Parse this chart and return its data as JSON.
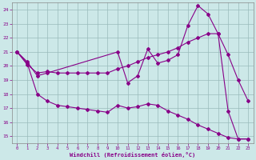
{
  "xlabel": "Windchill (Refroidissement éolien,°C)",
  "bg_color": "#cce8e8",
  "line_color": "#880088",
  "grid_color": "#99bbbb",
  "xlim": [
    -0.5,
    23.5
  ],
  "ylim": [
    14.5,
    24.5
  ],
  "yticks": [
    15,
    16,
    17,
    18,
    19,
    20,
    21,
    22,
    23,
    24
  ],
  "xticks": [
    0,
    1,
    2,
    3,
    4,
    5,
    6,
    7,
    8,
    9,
    10,
    11,
    12,
    13,
    14,
    15,
    16,
    17,
    18,
    19,
    20,
    21,
    22,
    23
  ],
  "line1_x": [
    0,
    1,
    2,
    3,
    10,
    11,
    12,
    13,
    14,
    15,
    16,
    17,
    18,
    19,
    20,
    21,
    22,
    23
  ],
  "line1_y": [
    21.0,
    20.3,
    19.3,
    19.5,
    21.0,
    18.8,
    19.3,
    21.2,
    20.2,
    20.4,
    20.8,
    22.9,
    24.3,
    23.7,
    22.3,
    16.8,
    14.8,
    14.8
  ],
  "line2_x": [
    0,
    1,
    2,
    3,
    4,
    5,
    6,
    7,
    8,
    9,
    10,
    11,
    12,
    13,
    14,
    15,
    16,
    17,
    18,
    19,
    20,
    21,
    22,
    23
  ],
  "line2_y": [
    21.0,
    20.1,
    19.5,
    19.6,
    19.5,
    19.5,
    19.5,
    19.5,
    19.5,
    19.5,
    19.8,
    20.0,
    20.3,
    20.6,
    20.8,
    21.0,
    21.3,
    21.7,
    22.0,
    22.3,
    22.3,
    20.8,
    19.0,
    17.5
  ],
  "line3_x": [
    0,
    1,
    2,
    3,
    4,
    5,
    6,
    7,
    8,
    9,
    10,
    11,
    12,
    13,
    14,
    15,
    16,
    17,
    18,
    19,
    20,
    21,
    22,
    23
  ],
  "line3_y": [
    21.0,
    20.2,
    18.0,
    17.5,
    17.2,
    17.1,
    17.0,
    16.9,
    16.8,
    16.7,
    17.2,
    17.0,
    17.1,
    17.3,
    17.2,
    16.8,
    16.5,
    16.2,
    15.8,
    15.5,
    15.2,
    14.9,
    14.8,
    14.8
  ]
}
